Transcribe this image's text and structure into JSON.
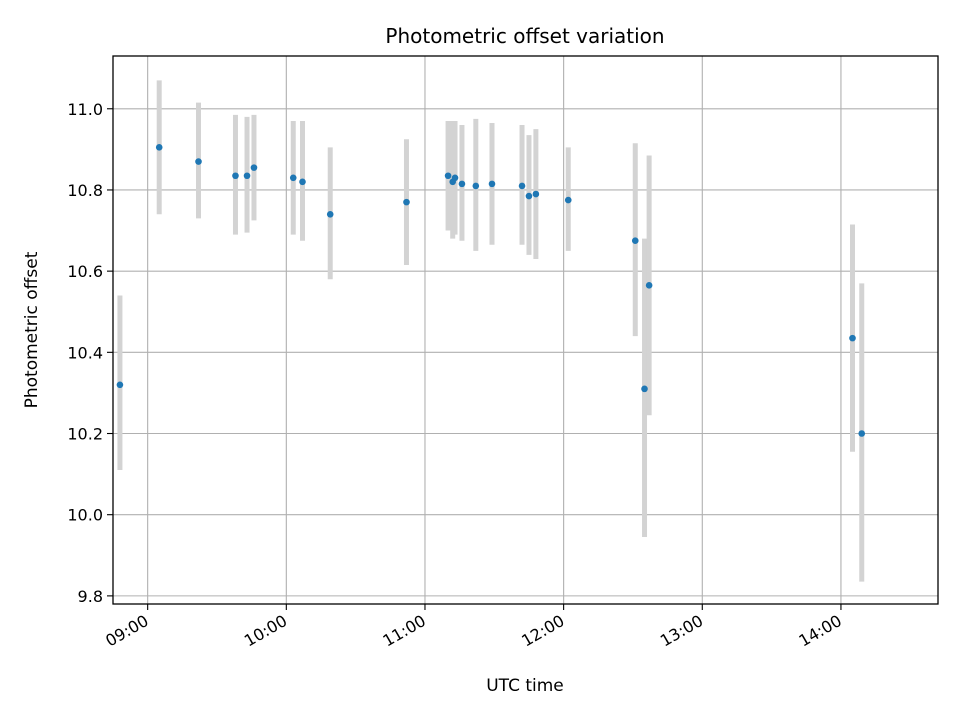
{
  "chart_data": {
    "type": "scatter",
    "title": "Photometric offset variation",
    "xlabel": "UTC time",
    "ylabel": "Photometric offset",
    "grid": true,
    "xlim": [
      "08:45",
      "14:42"
    ],
    "ylim": [
      9.78,
      11.13
    ],
    "x_ticks": [
      "09:00",
      "10:00",
      "11:00",
      "12:00",
      "13:00",
      "14:00"
    ],
    "y_ticks": [
      "9.8",
      "10.0",
      "10.2",
      "10.4",
      "10.6",
      "10.8",
      "11.0"
    ],
    "marker_color": "#1f77b4",
    "errorbar_color": "#d3d3d3",
    "points": [
      {
        "x": "08:48",
        "y": 10.32,
        "ylo": 10.11,
        "yhi": 10.54
      },
      {
        "x": "09:05",
        "y": 10.905,
        "ylo": 10.74,
        "yhi": 11.07
      },
      {
        "x": "09:22",
        "y": 10.87,
        "ylo": 10.73,
        "yhi": 11.015
      },
      {
        "x": "09:38",
        "y": 10.835,
        "ylo": 10.69,
        "yhi": 10.985
      },
      {
        "x": "09:43",
        "y": 10.835,
        "ylo": 10.695,
        "yhi": 10.98
      },
      {
        "x": "09:46",
        "y": 10.855,
        "ylo": 10.725,
        "yhi": 10.985
      },
      {
        "x": "10:03",
        "y": 10.83,
        "ylo": 10.69,
        "yhi": 10.97
      },
      {
        "x": "10:07",
        "y": 10.82,
        "ylo": 10.675,
        "yhi": 10.97
      },
      {
        "x": "10:19",
        "y": 10.74,
        "ylo": 10.58,
        "yhi": 10.905
      },
      {
        "x": "10:52",
        "y": 10.77,
        "ylo": 10.615,
        "yhi": 10.925
      },
      {
        "x": "11:10",
        "y": 10.835,
        "ylo": 10.7,
        "yhi": 10.97
      },
      {
        "x": "11:12",
        "y": 10.82,
        "ylo": 10.68,
        "yhi": 10.97
      },
      {
        "x": "11:13",
        "y": 10.83,
        "ylo": 10.69,
        "yhi": 10.97
      },
      {
        "x": "11:16",
        "y": 10.815,
        "ylo": 10.675,
        "yhi": 10.96
      },
      {
        "x": "11:22",
        "y": 10.81,
        "ylo": 10.65,
        "yhi": 10.975
      },
      {
        "x": "11:29",
        "y": 10.815,
        "ylo": 10.665,
        "yhi": 10.965
      },
      {
        "x": "11:42",
        "y": 10.81,
        "ylo": 10.665,
        "yhi": 10.96
      },
      {
        "x": "11:45",
        "y": 10.785,
        "ylo": 10.64,
        "yhi": 10.935
      },
      {
        "x": "11:48",
        "y": 10.79,
        "ylo": 10.63,
        "yhi": 10.95
      },
      {
        "x": "12:02",
        "y": 10.775,
        "ylo": 10.65,
        "yhi": 10.905
      },
      {
        "x": "12:31",
        "y": 10.675,
        "ylo": 10.44,
        "yhi": 10.915
      },
      {
        "x": "12:35",
        "y": 10.31,
        "ylo": 9.945,
        "yhi": 10.68
      },
      {
        "x": "12:37",
        "y": 10.565,
        "ylo": 10.245,
        "yhi": 10.885
      },
      {
        "x": "14:05",
        "y": 10.435,
        "ylo": 10.155,
        "yhi": 10.715
      },
      {
        "x": "14:09",
        "y": 10.2,
        "ylo": 9.835,
        "yhi": 10.57
      }
    ]
  }
}
